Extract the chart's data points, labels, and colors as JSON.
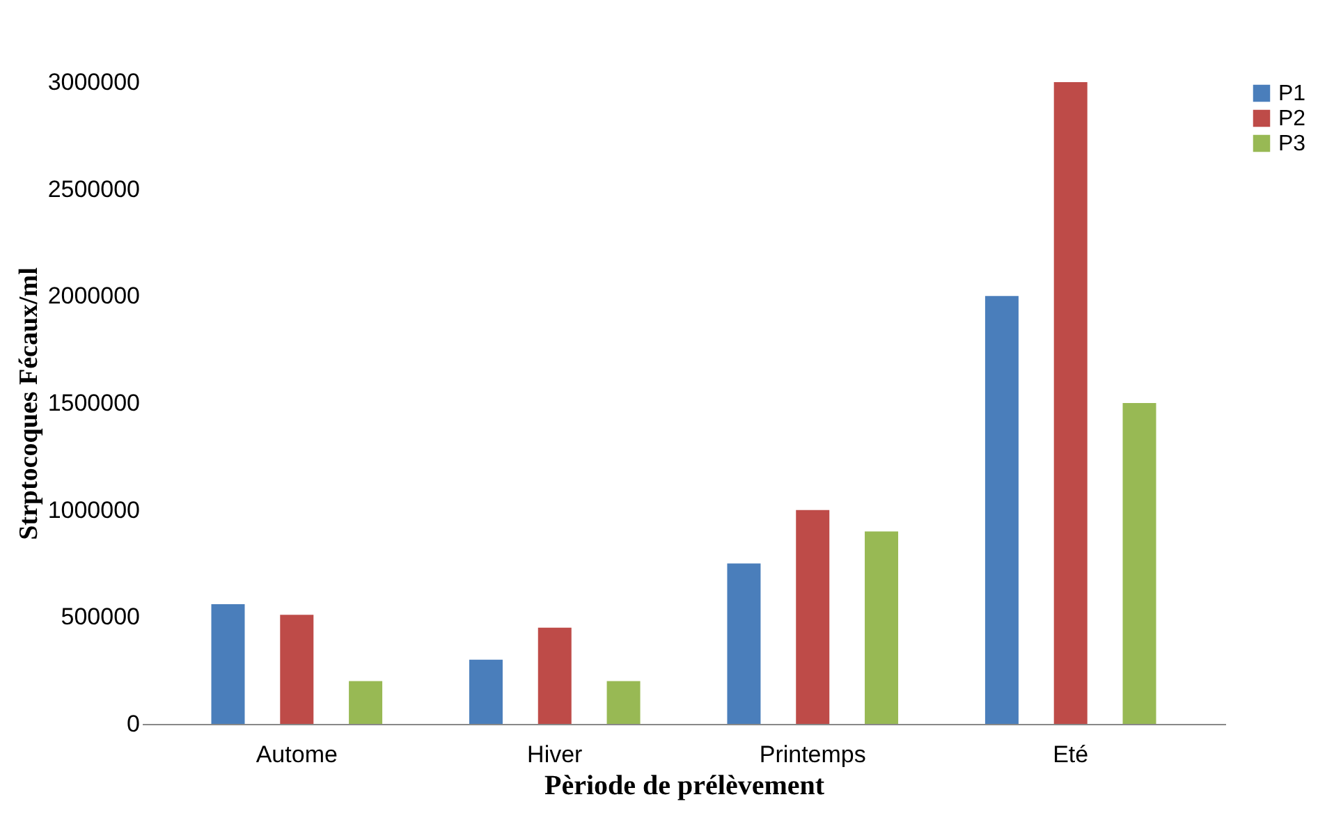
{
  "chart_data": {
    "type": "bar",
    "xlabel": "Pèriode de prélèvement",
    "ylabel": "Strptocoques Fécaux/ml",
    "categories": [
      "Autome",
      "Hiver",
      "Printemps",
      "Eté"
    ],
    "series": [
      {
        "name": "P1",
        "color": "#4a7ebb",
        "values": [
          560000,
          300000,
          750000,
          2000000
        ]
      },
      {
        "name": "P2",
        "color": "#be4b48",
        "values": [
          510000,
          450000,
          1000000,
          3000000
        ]
      },
      {
        "name": "P3",
        "color": "#98b954",
        "values": [
          200000,
          200000,
          900000,
          1500000
        ]
      }
    ],
    "ylim": [
      0,
      3000000
    ],
    "yticks": [
      0,
      500000,
      1000000,
      1500000,
      2000000,
      2500000,
      3000000
    ],
    "grid": false,
    "legend": "right"
  }
}
